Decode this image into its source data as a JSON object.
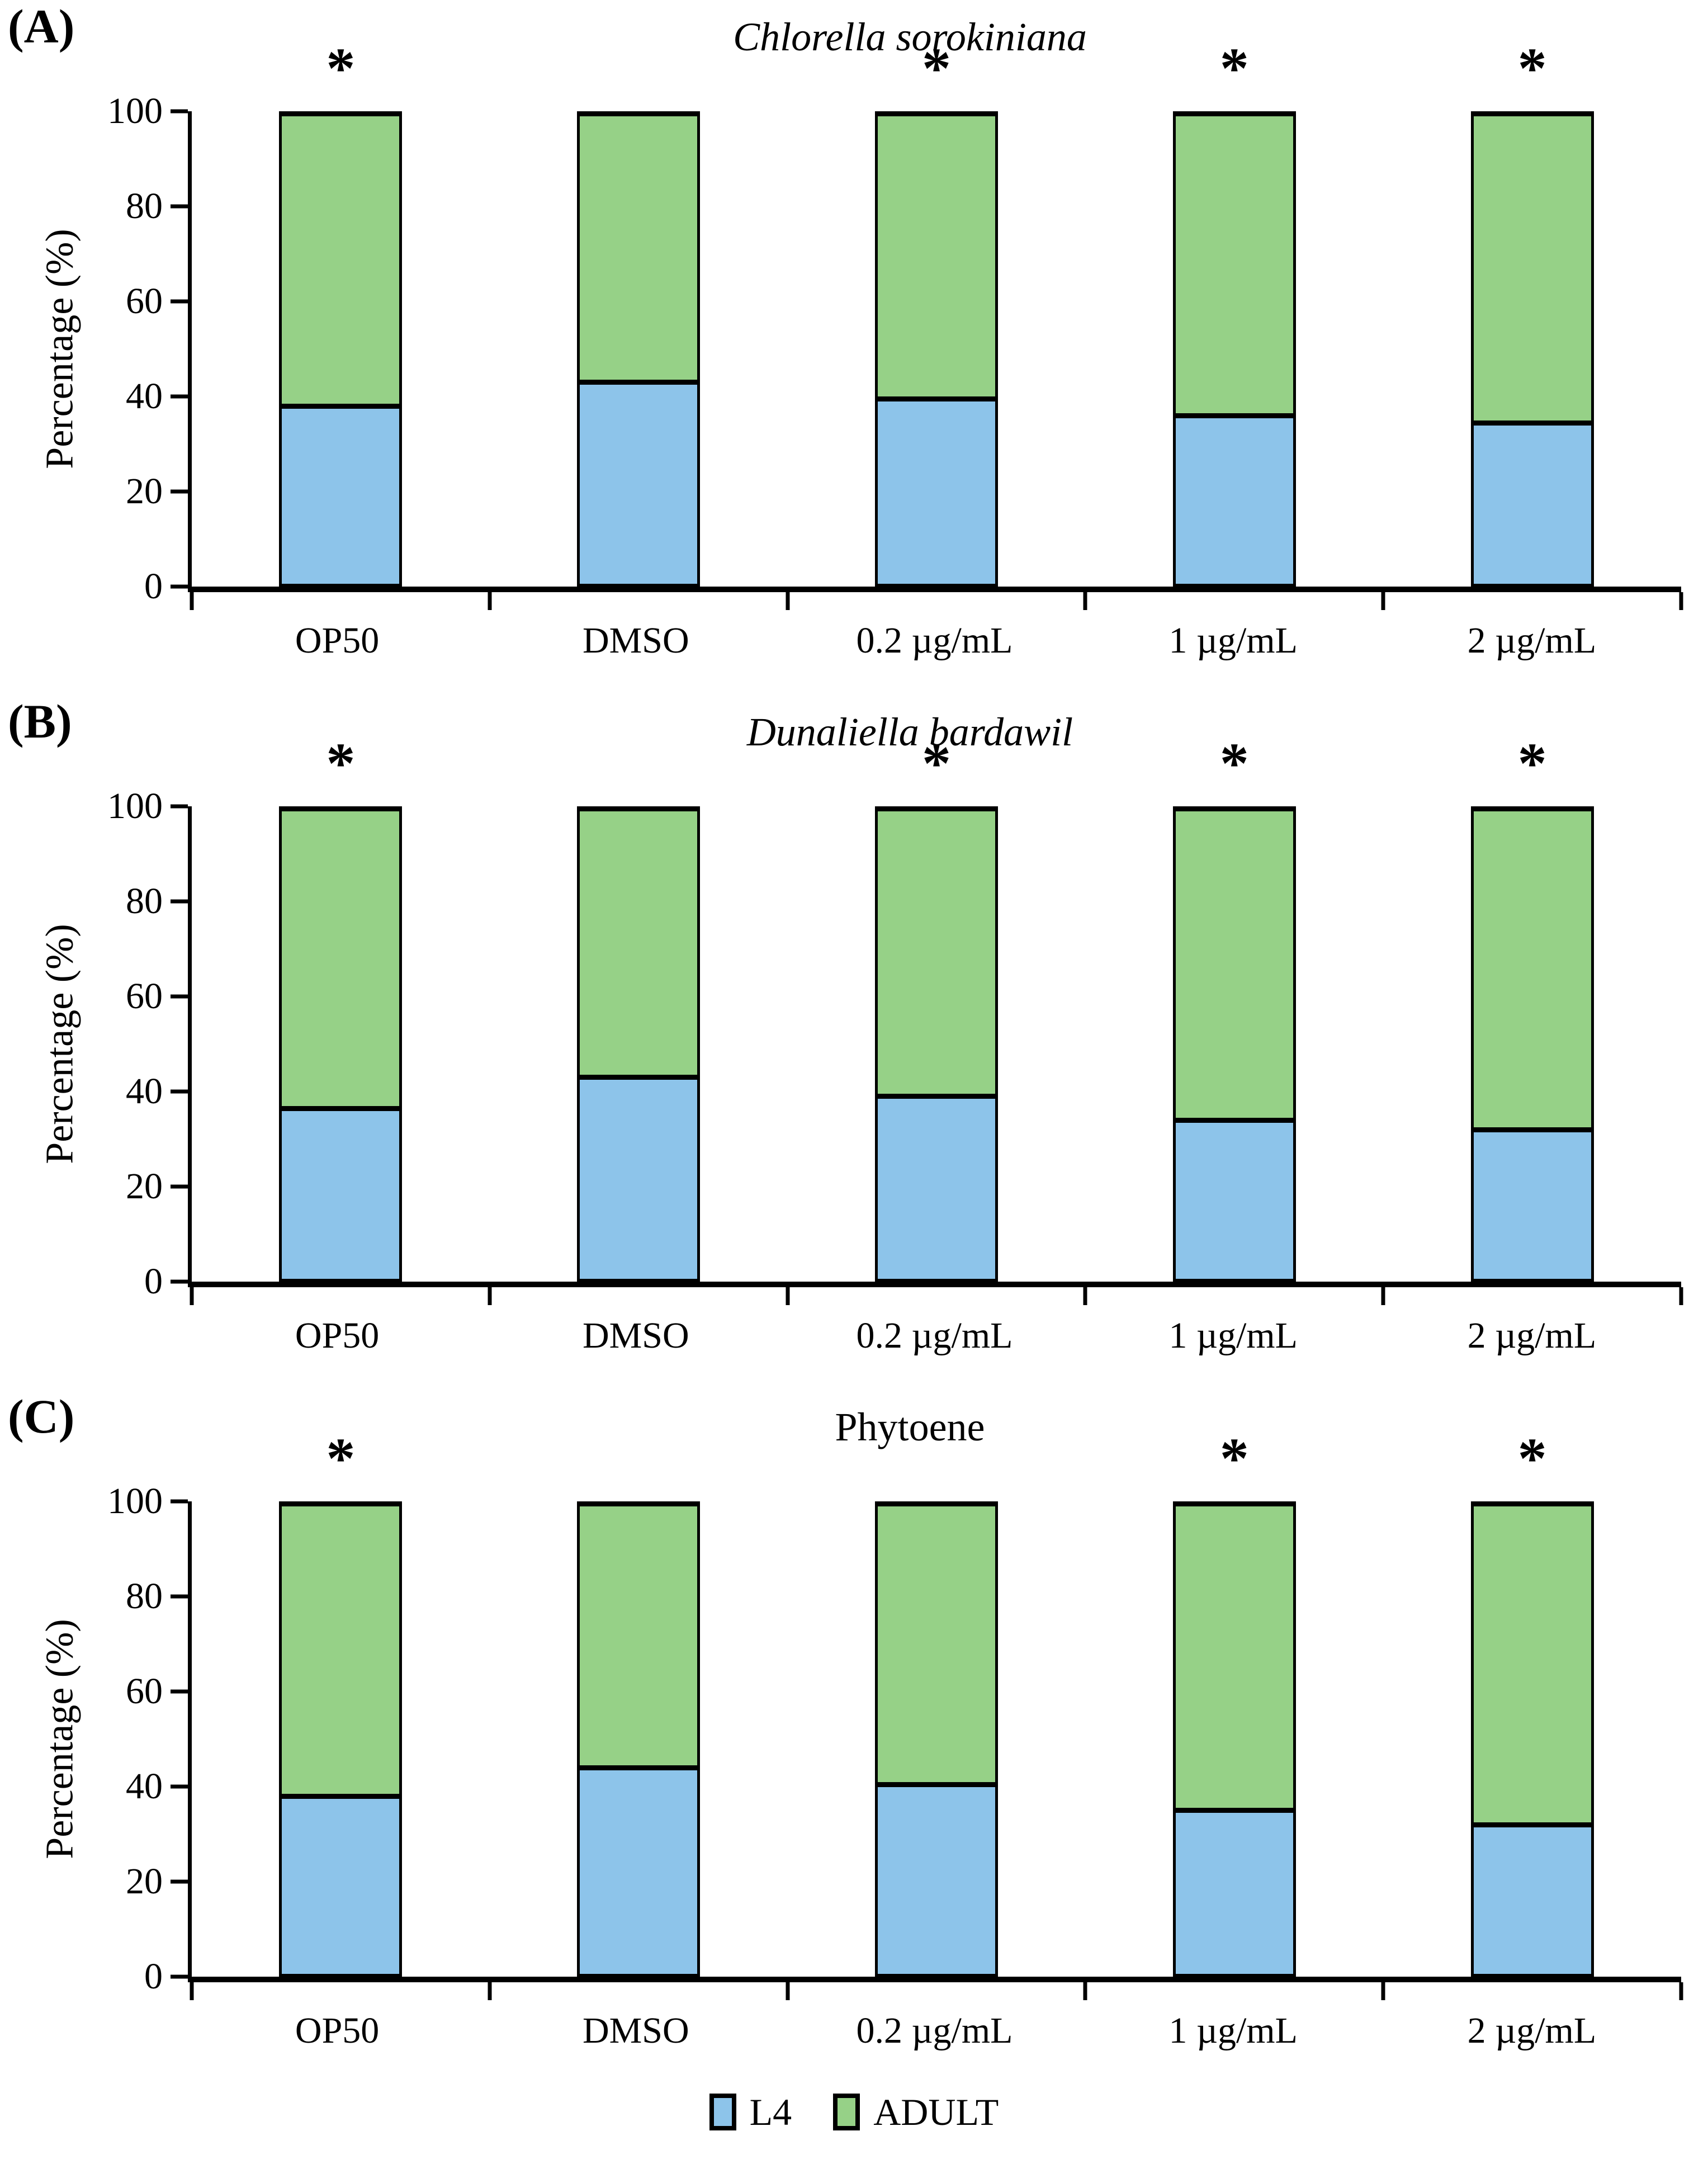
{
  "figure": {
    "annotation_symbol": "*",
    "colors": {
      "l4": "#8DC4EA",
      "adult": "#96D187",
      "outline": "#000000"
    },
    "legend": [
      {
        "name": "L4",
        "color_key": "l4"
      },
      {
        "name": "ADULT",
        "color_key": "adult"
      }
    ]
  },
  "chart_data": [
    {
      "type": "bar",
      "stacked": true,
      "panel_label": "(A)",
      "title": "Chlorella sorokiniana",
      "title_italic": true,
      "categories": [
        "OP50",
        "DMSO",
        "0.2 µg/mL",
        "1 µg/mL",
        "2 µg/mL"
      ],
      "xlabel": "",
      "ylabel": "Percentage (%)",
      "ylim": [
        0,
        100
      ],
      "yticks": [
        0,
        20,
        40,
        60,
        80,
        100
      ],
      "grid": false,
      "legend_position": "bottom",
      "series": [
        {
          "name": "L4",
          "values": [
            38.5,
            43.5,
            40,
            36.5,
            35
          ]
        },
        {
          "name": "ADULT",
          "values": [
            61.5,
            56.5,
            60,
            63.5,
            65
          ]
        }
      ],
      "significance_asterisks": [
        true,
        false,
        true,
        true,
        true
      ]
    },
    {
      "type": "bar",
      "stacked": true,
      "panel_label": "(B)",
      "title": "Dunaliella bardawil",
      "title_italic": true,
      "categories": [
        "OP50",
        "DMSO",
        "0.2 µg/mL",
        "1 µg/mL",
        "2 µg/mL"
      ],
      "xlabel": "",
      "ylabel": "Percentage (%)",
      "ylim": [
        0,
        100
      ],
      "yticks": [
        0,
        20,
        40,
        60,
        80,
        100
      ],
      "grid": false,
      "legend_position": "bottom",
      "series": [
        {
          "name": "L4",
          "values": [
            37,
            43.5,
            39.5,
            34.5,
            32.5
          ]
        },
        {
          "name": "ADULT",
          "values": [
            63,
            56.5,
            60.5,
            65.5,
            67.5
          ]
        }
      ],
      "significance_asterisks": [
        true,
        false,
        true,
        true,
        true
      ]
    },
    {
      "type": "bar",
      "stacked": true,
      "panel_label": "(C)",
      "title": "Phytoene",
      "title_italic": false,
      "categories": [
        "OP50",
        "DMSO",
        "0.2 µg/mL",
        "1 µg/mL",
        "2 µg/mL"
      ],
      "xlabel": "",
      "ylabel": "Percentage (%)",
      "ylim": [
        0,
        100
      ],
      "yticks": [
        0,
        20,
        40,
        60,
        80,
        100
      ],
      "grid": false,
      "legend_position": "bottom",
      "series": [
        {
          "name": "L4",
          "values": [
            38.5,
            44.5,
            41,
            35.5,
            32.5
          ]
        },
        {
          "name": "ADULT",
          "values": [
            61.5,
            55.5,
            59,
            64.5,
            67.5
          ]
        }
      ],
      "significance_asterisks": [
        true,
        false,
        false,
        true,
        true
      ]
    }
  ]
}
